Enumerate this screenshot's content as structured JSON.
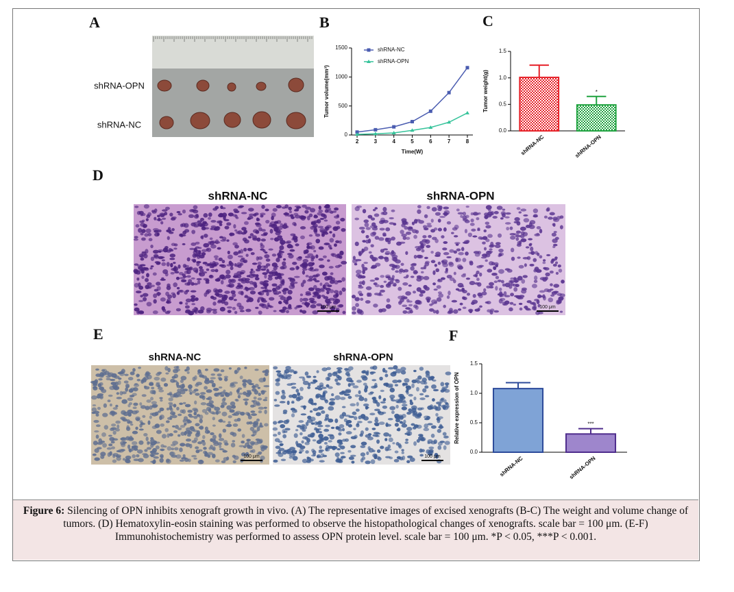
{
  "panels": {
    "A": {
      "letter": "A",
      "labels": [
        "shRNA-OPN",
        "shRNA-NC"
      ]
    },
    "B": {
      "letter": "B"
    },
    "C": {
      "letter": "C"
    },
    "D": {
      "letter": "D",
      "labels": [
        "shRNA-NC",
        "shRNA-OPN"
      ],
      "scale_bar": "100 μm"
    },
    "E": {
      "letter": "E",
      "labels": [
        "shRNA-NC",
        "shRNA-OPN"
      ],
      "scale_bar": "100 μm"
    },
    "F": {
      "letter": "F"
    }
  },
  "chart_data": [
    {
      "type": "line",
      "x_label": "Time(W)",
      "y_label": "Tumor volume(mm³)",
      "x": [
        2,
        3,
        4,
        5,
        6,
        7,
        8
      ],
      "xlim": [
        1.7,
        8.3
      ],
      "xticks": [
        2,
        3,
        4,
        5,
        6,
        7,
        8
      ],
      "ylim": [
        0,
        1500
      ],
      "yticks": [
        0,
        500,
        1000,
        1500
      ],
      "legend": "upper-left",
      "series": [
        {
          "name": "shRNA-NC",
          "color": "#4a5cb0",
          "marker": "square",
          "values": [
            50,
            90,
            140,
            230,
            410,
            730,
            1160
          ]
        },
        {
          "name": "shRNA-OPN",
          "color": "#35c39a",
          "marker": "triangle",
          "values": [
            10,
            20,
            35,
            80,
            130,
            220,
            380
          ]
        }
      ]
    },
    {
      "type": "bar",
      "y_label": "Tumor weight(g)",
      "categories": [
        "shRNA-NC",
        "shRNA-OPN"
      ],
      "values": [
        1.01,
        0.49
      ],
      "errors": [
        0.23,
        0.16
      ],
      "significance": [
        null,
        "*"
      ],
      "colors": [
        "#e62128",
        "#1fa23f"
      ],
      "edge_colors": [
        "#e62128",
        "#1fa23f"
      ],
      "pattern": "checker",
      "ylim": [
        0,
        1.5
      ],
      "yticks": [
        {
          "value": 0,
          "label": "0.0"
        },
        {
          "value": 0.5,
          "label": "0.5"
        },
        {
          "value": 1,
          "label": "1.0"
        },
        {
          "value": 1.5,
          "label": "1.5"
        }
      ]
    },
    {
      "type": "bar",
      "y_label": "Relative expression of OPN",
      "categories": [
        "shRNA-NC",
        "shRNA-OPN"
      ],
      "values": [
        1.08,
        0.31
      ],
      "errors": [
        0.1,
        0.09
      ],
      "significance": [
        null,
        "***"
      ],
      "colors": [
        "#7fa3d6",
        "#9e86cc"
      ],
      "edge_colors": [
        "#2c4a9a",
        "#4e2c8c"
      ],
      "pattern": "solid",
      "ylim": [
        0,
        1.5
      ],
      "yticks": [
        {
          "value": 0,
          "label": "0.0"
        },
        {
          "value": 0.5,
          "label": "0.5"
        },
        {
          "value": 1,
          "label": "1.0"
        },
        {
          "value": 1.5,
          "label": "1.5"
        }
      ]
    }
  ],
  "caption": {
    "label": "Figure 6:",
    "text": "Silencing of OPN inhibits xenograft growth in vivo. (A) The representative images of excised xenografts (B-C) The weight and volume change of tumors. (D) Hematoxylin-eosin staining was performed to observe the histopathological changes of xenografts. scale bar = 100 μm. (E-F) Immunohistochemistry was performed to assess OPN protein level. scale bar = 100 μm. *P < 0.05, ***P < 0.001."
  }
}
